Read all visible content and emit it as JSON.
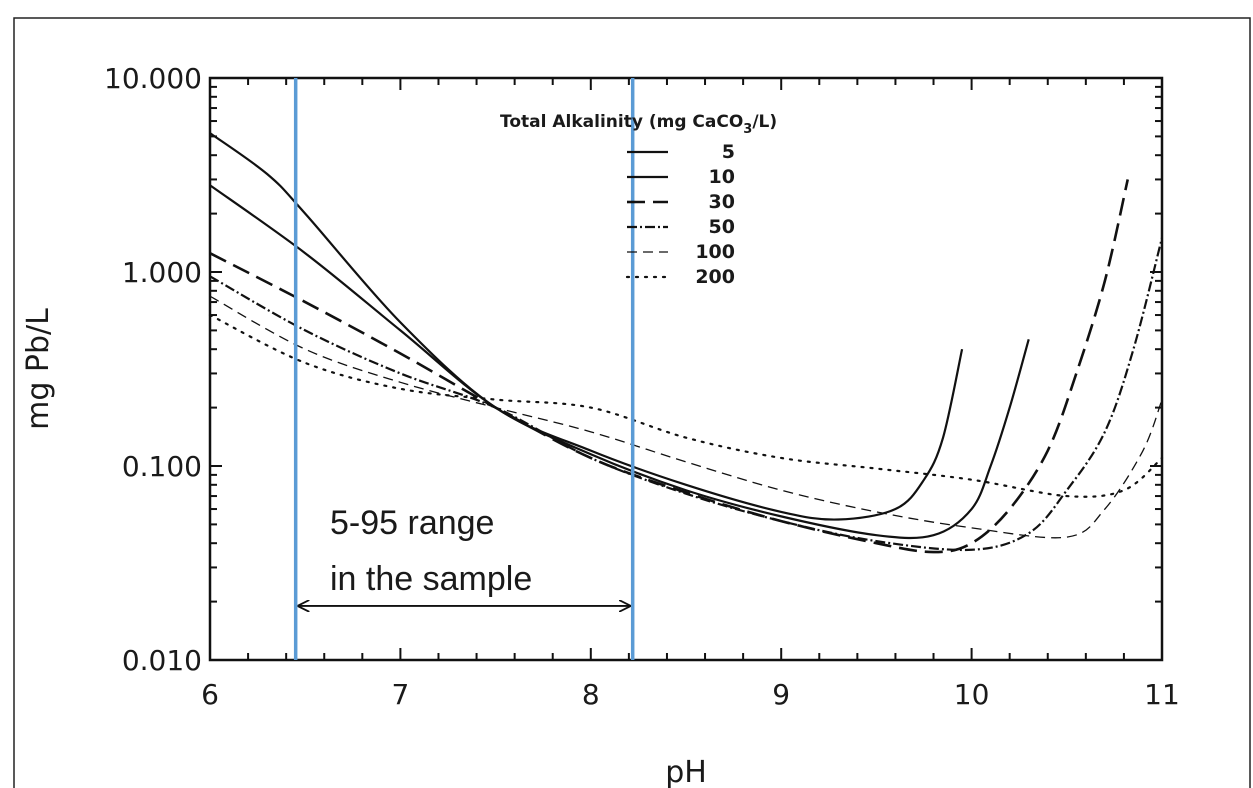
{
  "chart_data": {
    "type": "line",
    "xlabel": "pH",
    "ylabel": "mg Pb/L",
    "xlim": [
      6,
      11
    ],
    "ylim": [
      0.01,
      10
    ],
    "yscale": "log",
    "x_ticks": [
      "6",
      "7",
      "8",
      "9",
      "10",
      "11"
    ],
    "y_ticks": [
      "0.010",
      "0.100",
      "1.000",
      "10.000"
    ],
    "grid": false,
    "legend": {
      "title": "Total Alkalinity (mg CaCO",
      "title_sub": "3",
      "title_end": "/L)",
      "placement": "top-center"
    },
    "series": [
      {
        "name": "5",
        "style": "solid",
        "x": [
          6.0,
          6.3,
          6.5,
          7.0,
          7.5,
          8.0,
          8.5,
          9.0,
          9.3,
          9.6,
          9.75,
          9.85,
          9.95
        ],
        "y": [
          5.2,
          3.2,
          2.0,
          0.55,
          0.2,
          0.12,
          0.08,
          0.058,
          0.053,
          0.06,
          0.085,
          0.14,
          0.4
        ]
      },
      {
        "name": "10",
        "style": "solid",
        "x": [
          6.0,
          6.5,
          7.0,
          7.5,
          8.0,
          8.5,
          9.0,
          9.5,
          9.8,
          10.0,
          10.1,
          10.2,
          10.3
        ],
        "y": [
          2.8,
          1.25,
          0.5,
          0.2,
          0.115,
          0.075,
          0.055,
          0.044,
          0.044,
          0.06,
          0.1,
          0.2,
          0.45
        ]
      },
      {
        "name": "30",
        "style": "dash",
        "x": [
          6.0,
          6.5,
          7.0,
          7.5,
          8.0,
          8.5,
          9.0,
          9.5,
          9.8,
          10.0,
          10.2,
          10.4,
          10.55,
          10.7,
          10.82
        ],
        "y": [
          1.25,
          0.7,
          0.38,
          0.2,
          0.11,
          0.073,
          0.052,
          0.04,
          0.036,
          0.04,
          0.06,
          0.12,
          0.3,
          0.9,
          3.0
        ]
      },
      {
        "name": "50",
        "style": "dashdot",
        "x": [
          6.0,
          6.5,
          7.0,
          7.5,
          8.0,
          8.5,
          9.0,
          9.5,
          10.0,
          10.3,
          10.5,
          10.7,
          10.85,
          11.0
        ],
        "y": [
          0.95,
          0.5,
          0.3,
          0.2,
          0.11,
          0.072,
          0.052,
          0.041,
          0.037,
          0.045,
          0.075,
          0.15,
          0.4,
          1.5
        ]
      },
      {
        "name": "100",
        "style": "thin-dash",
        "x": [
          6.0,
          6.5,
          7.0,
          7.5,
          8.0,
          8.5,
          9.0,
          9.5,
          10.0,
          10.5,
          10.7,
          10.9,
          11.0
        ],
        "y": [
          0.75,
          0.4,
          0.27,
          0.2,
          0.15,
          0.105,
          0.075,
          0.058,
          0.048,
          0.043,
          0.06,
          0.12,
          0.22
        ]
      },
      {
        "name": "200",
        "style": "dot",
        "x": [
          6.0,
          6.5,
          7.0,
          7.5,
          8.0,
          8.5,
          9.0,
          9.5,
          10.0,
          10.5,
          10.8,
          11.0
        ],
        "y": [
          0.6,
          0.34,
          0.25,
          0.22,
          0.2,
          0.14,
          0.11,
          0.097,
          0.085,
          0.07,
          0.075,
          0.11
        ]
      }
    ],
    "reference_lines": [
      {
        "x": 6.45,
        "color": "#5b9bd5"
      },
      {
        "x": 8.22,
        "color": "#5b9bd5"
      }
    ],
    "annotation": {
      "lines": [
        "5-95 range",
        "in the sample"
      ],
      "arrow_y": 0.019,
      "arrow_from_x": 6.45,
      "arrow_to_x": 8.22
    }
  }
}
